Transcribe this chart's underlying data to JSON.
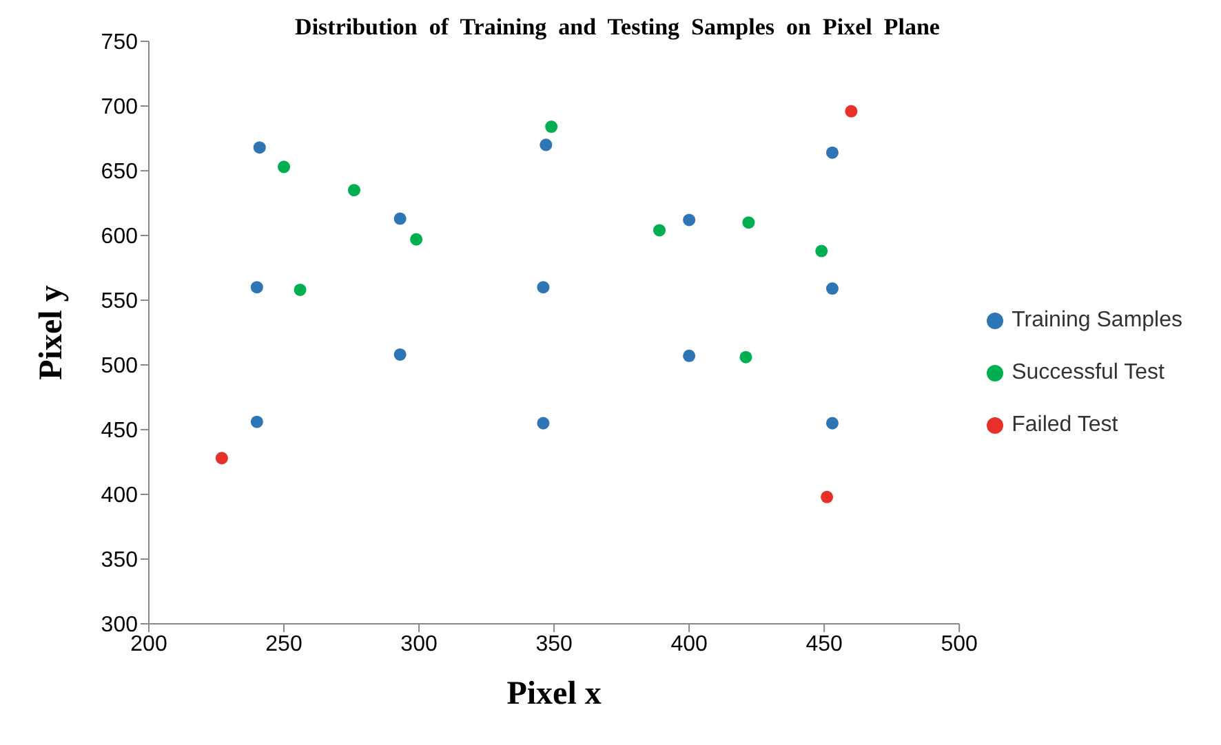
{
  "chart_data": {
    "type": "scatter",
    "title": "Distribution  of  Training  and  Testing  Samples  on  Pixel  Plane",
    "xlabel": "Pixel x",
    "ylabel": "Pixel y",
    "xlim": [
      200,
      500
    ],
    "xticks": [
      200,
      250,
      300,
      350,
      400,
      450,
      500
    ],
    "ylim": [
      300,
      750
    ],
    "yticks": [
      300,
      350,
      400,
      450,
      500,
      550,
      600,
      650,
      700,
      750
    ],
    "grid": false,
    "legend": "right",
    "marker": "circle",
    "series": [
      {
        "name": "Training Samples",
        "color": "#2e75b6",
        "x": [
          241,
          240,
          240,
          293,
          293,
          347,
          346,
          346,
          400,
          400,
          453,
          453,
          453
        ],
        "values": [
          668,
          560,
          456,
          613,
          508,
          670,
          560,
          455,
          612,
          507,
          664,
          559,
          455
        ]
      },
      {
        "name": "Successful Test",
        "color": "#00b050",
        "x": [
          250,
          256,
          276,
          299,
          349,
          389,
          422,
          421,
          449
        ],
        "values": [
          653,
          558,
          635,
          597,
          684,
          604,
          610,
          506,
          588
        ]
      },
      {
        "name": "Failed Test",
        "color": "#e8302a",
        "x": [
          227,
          460,
          451
        ],
        "values": [
          428,
          696,
          398
        ]
      }
    ]
  }
}
